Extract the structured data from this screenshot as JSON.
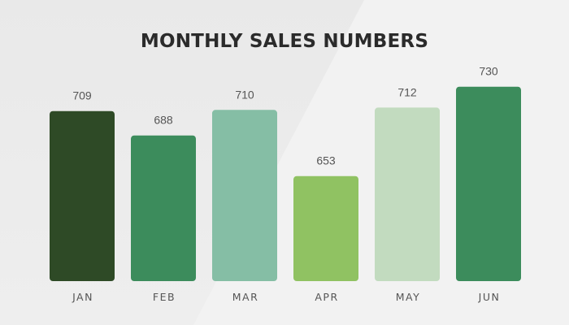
{
  "chart_data": {
    "type": "bar",
    "title": "MONTHLY SALES NUMBERS",
    "categories": [
      "JAN",
      "FEB",
      "MAR",
      "APR",
      "MAY",
      "JUN"
    ],
    "values": [
      709,
      688,
      710,
      653,
      712,
      730
    ],
    "colors": [
      "#2e4a26",
      "#3c8c5c",
      "#85bea5",
      "#90c262",
      "#c2dbbf",
      "#3c8c5c"
    ],
    "data_labels": [
      "709",
      "688",
      "710",
      "653",
      "712",
      "730"
    ],
    "legend": "none",
    "grid": false
  }
}
